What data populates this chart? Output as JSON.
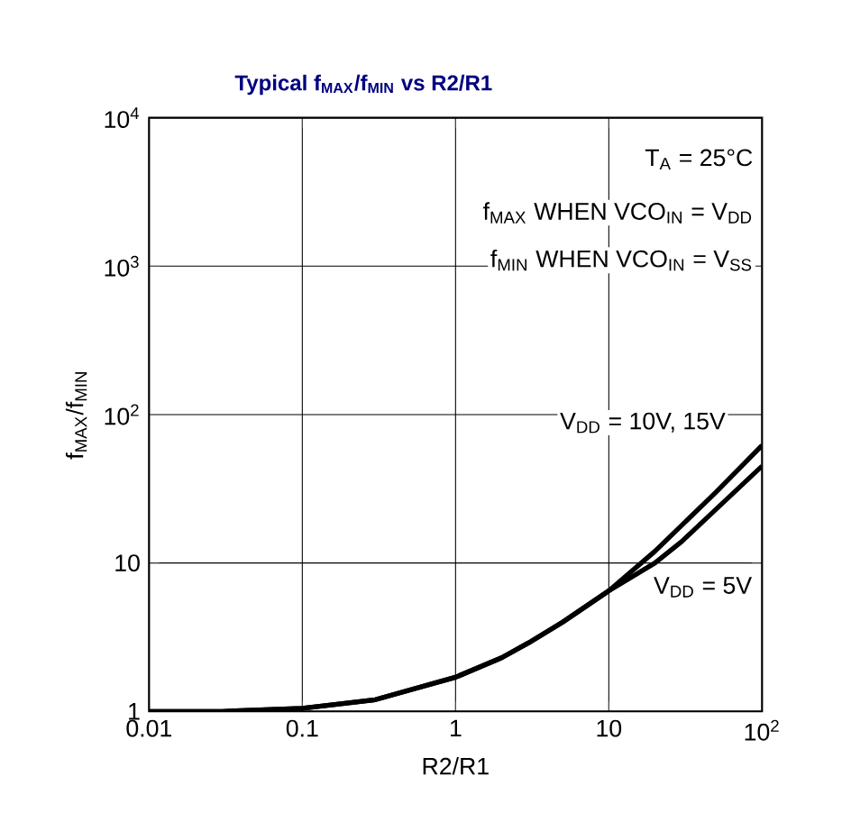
{
  "chart_data": {
    "type": "line",
    "title": "Typical f$_{MAX}$/f$_{MIN}$ vs R2/R1",
    "xlabel": "R2/R1",
    "ylabel": "f$_{MAX}$/f$_{MIN}$",
    "log": "xy",
    "grid": true,
    "xlim": [
      0.01,
      100
    ],
    "ylim": [
      1,
      10000
    ],
    "xticks": [
      0.01,
      0.1,
      1,
      10,
      {
        "value": 100,
        "label": "10$^{2}$"
      }
    ],
    "yticks": [
      1,
      10,
      {
        "value": 100,
        "label": "10$^{2}$"
      },
      {
        "value": 1000,
        "label": "10$^{3}$"
      },
      {
        "value": 10000,
        "label": "10$^{4}$"
      }
    ],
    "annotations": [
      "T$_{A}$ = 25°C",
      "f$_{MAX}$ WHEN VCO$_{IN}$ = V$_{DD}$",
      "f$_{MIN}$ WHEN VCO$_{IN}$ = V$_{SS}$"
    ],
    "x": [
      0.01,
      0.03,
      0.1,
      0.3,
      1,
      2,
      3,
      5,
      10,
      20,
      30,
      50,
      100
    ],
    "series": [
      {
        "name": "V$_{DD}$ = 10V, 15V",
        "color": "#000000",
        "values": [
          1,
          1,
          1.05,
          1.2,
          1.7,
          2.3,
          2.9,
          4,
          6.5,
          12,
          18,
          30,
          62
        ]
      },
      {
        "name": "V$_{DD}$ = 5V",
        "color": "#000000",
        "values": [
          1,
          1,
          1.05,
          1.2,
          1.7,
          2.3,
          2.9,
          4,
          6.5,
          10,
          14,
          23,
          45
        ]
      }
    ]
  }
}
